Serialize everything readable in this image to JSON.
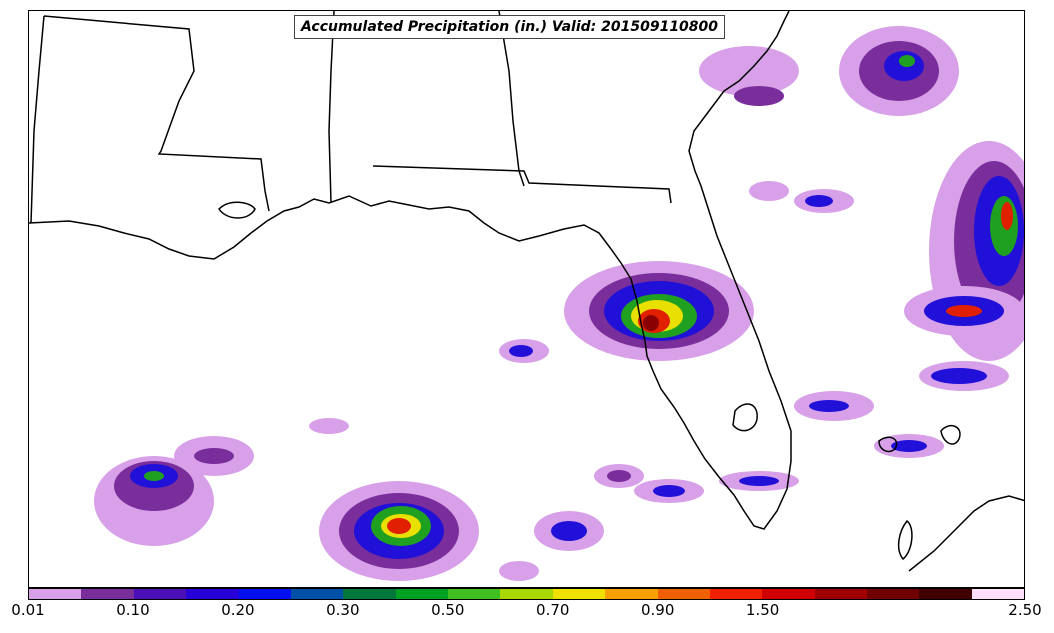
{
  "title": "Accumulated Precipitation (in.) Valid: 201509110800",
  "colorbar": {
    "colors": [
      "#d8a0e8",
      "#7a2e9c",
      "#4a10b8",
      "#2800d8",
      "#0010f0",
      "#0050a8",
      "#00783c",
      "#00a020",
      "#40c020",
      "#a8d800",
      "#f0e000",
      "#f8a000",
      "#f06000",
      "#f02000",
      "#d00000",
      "#a00000",
      "#700000",
      "#400000",
      "#ffe0f8"
    ],
    "tick_labels": [
      "0.01",
      "0.10",
      "0.20",
      "0.30",
      "0.50",
      "0.70",
      "0.90",
      "1.50",
      "2.50"
    ]
  },
  "precip_palette": {
    "light": "#d8a0e8",
    "mid": "#7a2e9c",
    "blue": "#2010d8",
    "green": "#20a020",
    "yellow": "#e8e000",
    "red": "#e02000",
    "dark": "#8a0000"
  }
}
